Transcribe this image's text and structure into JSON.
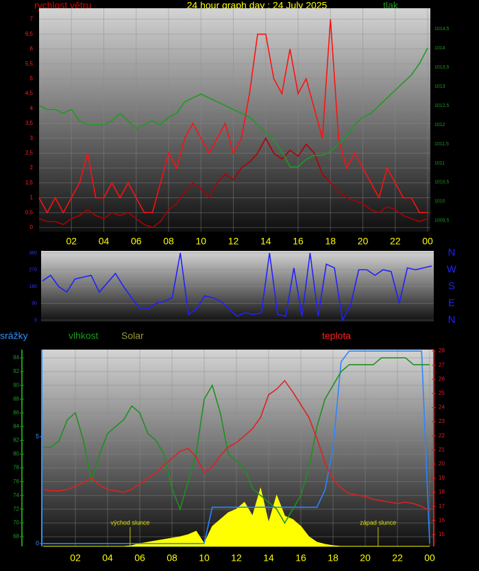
{
  "chart_data": [
    {
      "type": "line",
      "title": "24 hour graph day : 24 July 2025",
      "y_label": "rychlost větru",
      "y2_label": "tlak",
      "grid": true,
      "x": [
        0,
        0.5,
        1,
        1.5,
        2,
        2.5,
        3,
        3.5,
        4,
        4.5,
        5,
        5.5,
        6,
        6.5,
        7,
        7.5,
        8,
        8.5,
        9,
        9.5,
        10,
        10.5,
        11,
        11.5,
        12,
        12.5,
        13,
        13.5,
        14,
        14.5,
        15,
        15.5,
        16,
        16.5,
        17,
        17.5,
        18,
        18.5,
        19,
        19.5,
        20,
        20.5,
        21,
        21.5,
        22,
        22.5,
        23,
        23.5,
        24
      ],
      "xlim": [
        0,
        24
      ],
      "xticks": [
        {
          "value": 2,
          "label": "02"
        },
        {
          "value": 4,
          "label": "04"
        },
        {
          "value": 6,
          "label": "06"
        },
        {
          "value": 8,
          "label": "08"
        },
        10,
        12,
        14,
        16,
        18,
        20,
        22,
        {
          "value": 24,
          "label": "00"
        }
      ],
      "ylim": [
        -0.14,
        7.37
      ],
      "yticks": [
        0,
        {
          "value": 0.5,
          "label": "0,5"
        },
        1,
        {
          "value": 1.5,
          "label": "1,5"
        },
        2,
        {
          "value": 2.5,
          "label": "2,5"
        },
        3,
        {
          "value": 3.5,
          "label": "3,5"
        },
        4,
        {
          "value": 4.5,
          "label": "4,5"
        },
        5,
        {
          "value": 5.5,
          "label": "5,5"
        },
        6,
        {
          "value": 6.5,
          "label": "6,5"
        },
        7
      ],
      "y2lim": [
        1009.21,
        1015.04
      ],
      "y2ticks": [
        {
          "value": 1009.5,
          "label": "1009,5"
        },
        1010,
        {
          "value": 1010.5,
          "label": "1010,5"
        },
        1011,
        {
          "value": 1011.5,
          "label": "1011,5"
        },
        1012,
        {
          "value": 1012.5,
          "label": "1012,5"
        },
        1013,
        {
          "value": 1013.5,
          "label": "1013,5"
        },
        1014,
        {
          "value": 1014.5,
          "label": "1014,5"
        }
      ],
      "series": [
        {
          "color": "#ff1010",
          "values": [
            1,
            0.5,
            1,
            0.5,
            1,
            1.5,
            2.5,
            1,
            1,
            1.5,
            1,
            1.5,
            1,
            0.5,
            0.5,
            1.5,
            2.5,
            2,
            3,
            3.5,
            3,
            2.5,
            3,
            3.5,
            2.5,
            3,
            4.5,
            6.5,
            6.5,
            5,
            4.5,
            6,
            4.5,
            5,
            4,
            3,
            7,
            3,
            2,
            2.5,
            2,
            1.5,
            1,
            2,
            1.5,
            1,
            1,
            0.5,
            0.5
          ]
        },
        {
          "color": "#b00000",
          "values": [
            0.3,
            0.2,
            0.2,
            0.1,
            0.3,
            0.4,
            0.6,
            0.4,
            0.3,
            0.5,
            0.4,
            0.5,
            0.3,
            0.1,
            0,
            0.2,
            0.6,
            0.8,
            1.2,
            1.5,
            1.3,
            1,
            1.5,
            1.8,
            1.6,
            2,
            2.2,
            2.5,
            3,
            2.5,
            2.3,
            2.6,
            2.4,
            2.8,
            2.5,
            1.8,
            1.5,
            1.2,
            1,
            0.9,
            0.8,
            0.6,
            0.5,
            0.7,
            0.6,
            0.4,
            0.3,
            0.2,
            0.3
          ]
        },
        {
          "color": "#1f9a1f",
          "axis": "y2",
          "values": [
            1012.5,
            1012.4,
            1012.4,
            1012.3,
            1012.4,
            1012.1,
            1012.0,
            1012.0,
            1012.0,
            1012.1,
            1012.3,
            1012.1,
            1011.9,
            1012.0,
            1012.1,
            1012.0,
            1012.2,
            1012.3,
            1012.6,
            1012.7,
            1012.8,
            1012.7,
            1012.6,
            1012.5,
            1012.4,
            1012.3,
            1012.2,
            1012.0,
            1011.8,
            1011.6,
            1011.3,
            1010.9,
            1010.9,
            1011.1,
            1011.2,
            1011.2,
            1011.3,
            1011.5,
            1011.7,
            1012.0,
            1012.2,
            1012.3,
            1012.5,
            1012.7,
            1012.9,
            1013.1,
            1013.3,
            1013.6,
            1014.0
          ]
        }
      ]
    },
    {
      "type": "line",
      "grid": true,
      "x": [
        0,
        0.5,
        1,
        1.5,
        2,
        2.5,
        3,
        3.5,
        4,
        4.5,
        5,
        5.5,
        6,
        6.5,
        7,
        7.5,
        8,
        8.5,
        9,
        9.5,
        10,
        10.5,
        11,
        11.5,
        12,
        12.5,
        13,
        13.5,
        14,
        14.5,
        15,
        15.5,
        16,
        16.5,
        17,
        17.5,
        18,
        18.5,
        19,
        19.5,
        20,
        20.5,
        21,
        21.5,
        22,
        22.5,
        23,
        23.5,
        24
      ],
      "xlim": [
        0,
        24
      ],
      "ylim": [
        -11,
        371
      ],
      "yticks": [
        0,
        90,
        180,
        270,
        360
      ],
      "y2lim": [
        -11,
        371
      ],
      "y2ticks": [
        {
          "value": 360,
          "label": "N"
        },
        {
          "value": 270,
          "label": "W"
        },
        {
          "value": 180,
          "label": "S"
        },
        {
          "value": 90,
          "label": "E"
        },
        {
          "value": 0,
          "label": "N"
        }
      ],
      "series": [
        {
          "color": "#2020ff",
          "values": [
            210,
            240,
            180,
            150,
            220,
            230,
            240,
            150,
            200,
            250,
            180,
            120,
            60,
            60,
            90,
            100,
            120,
            360,
            30,
            60,
            130,
            120,
            100,
            60,
            20,
            40,
            30,
            40,
            360,
            30,
            20,
            280,
            20,
            360,
            20,
            300,
            280,
            0,
            80,
            270,
            270,
            240,
            270,
            260,
            90,
            280,
            270,
            280,
            290
          ]
        }
      ]
    },
    {
      "type": "line",
      "grid": true,
      "x": [
        0,
        0.5,
        1,
        1.5,
        2,
        2.5,
        3,
        3.5,
        4,
        4.5,
        5,
        5.5,
        6,
        6.5,
        7,
        7.5,
        8,
        8.5,
        9,
        9.5,
        10,
        10.5,
        11,
        11.5,
        12,
        12.5,
        13,
        13.5,
        14,
        14.5,
        15,
        15.5,
        16,
        16.5,
        17,
        17.5,
        18,
        18.5,
        19,
        19.5,
        20,
        20.5,
        21,
        21.5,
        22,
        22.5,
        23,
        23.5,
        24
      ],
      "xlim": [
        0,
        24
      ],
      "xticks": [
        {
          "value": 2,
          "label": "02"
        },
        {
          "value": 4,
          "label": "04"
        },
        {
          "value": 6,
          "label": "06"
        },
        {
          "value": 8,
          "label": "08"
        },
        10,
        12,
        14,
        16,
        18,
        20,
        22,
        {
          "value": 24,
          "label": "00"
        }
      ],
      "ylim": [
        66.6,
        95.2
      ],
      "yticks": [
        68,
        70,
        72,
        74,
        76,
        78,
        80,
        82,
        84,
        86,
        88,
        90,
        92,
        94
      ],
      "y2lim": [
        14.17,
        28.1
      ],
      "y2ticks": [
        15,
        16,
        17,
        18,
        19,
        20,
        21,
        22,
        23,
        24,
        25,
        26,
        27,
        28
      ],
      "y3lim": [
        -0.13,
        9.07
      ],
      "y3ticks": [
        0,
        5
      ],
      "annotations": [
        {
          "x": 5.4,
          "text": "východ slunce"
        },
        {
          "x": 20.8,
          "text": "západ slunce"
        }
      ],
      "series": [
        {
          "name": "srážky",
          "color": "#2a86ff",
          "axis": "y3",
          "values": [
            0,
            0,
            0,
            0,
            0,
            0,
            0,
            0,
            0,
            0,
            0,
            0,
            0,
            0,
            0,
            0,
            0,
            0,
            0,
            0,
            0,
            1.7,
            1.7,
            1.7,
            1.7,
            1.7,
            1.7,
            1.7,
            1.7,
            1.7,
            1.7,
            1.7,
            1.7,
            1.7,
            1.7,
            2.5,
            4.5,
            8.5,
            9,
            9,
            9,
            9,
            9,
            9,
            9,
            9,
            9,
            9,
            0
          ]
        },
        {
          "name": "vlhkost",
          "color": "#1f8f1f",
          "values": [
            81,
            81,
            82,
            85,
            86,
            82,
            76,
            80,
            83,
            84,
            85,
            87,
            86,
            83,
            82,
            80,
            75,
            72,
            76,
            80,
            88,
            90,
            86,
            80,
            79,
            78,
            75,
            74,
            73,
            72,
            70,
            72,
            74,
            78,
            84,
            88,
            90,
            92,
            93,
            93,
            93,
            93,
            94,
            94,
            94,
            94,
            93,
            93,
            93
          ]
        },
        {
          "name": "Solar",
          "color": "#ffff00",
          "area": true,
          "values": [
            66.6,
            66.6,
            66.6,
            66.6,
            66.6,
            66.6,
            66.6,
            66.6,
            66.6,
            66.6,
            66.6,
            66.7,
            67.0,
            67.2,
            67.4,
            67.6,
            67.8,
            68.0,
            68.3,
            68.8,
            67.0,
            69.5,
            70.5,
            71.5,
            72,
            73,
            71,
            75,
            70,
            74,
            71,
            70.5,
            69.5,
            68,
            67.2,
            66.9,
            66.7,
            66.6,
            66.6,
            66.6,
            66.6,
            66.6,
            66.6,
            66.6,
            66.6,
            66.6,
            66.6,
            66.6,
            66.6
          ]
        },
        {
          "name": "teplota",
          "color": "#e02020",
          "axis": "y2",
          "values": [
            18.2,
            18.1,
            18.1,
            18.2,
            18.4,
            18.7,
            19,
            18.5,
            18.2,
            18.1,
            18,
            18.2,
            18.6,
            19,
            19.4,
            19.9,
            20.4,
            20.9,
            21.1,
            20.5,
            19.4,
            19.8,
            20.6,
            21.2,
            21.5,
            22,
            22.5,
            23.3,
            24.9,
            25.3,
            25.9,
            25.1,
            24.2,
            23.3,
            21.8,
            20.1,
            18.9,
            18.3,
            17.9,
            17.8,
            17.7,
            17.5,
            17.4,
            17.3,
            17.2,
            17.3,
            17.2,
            17,
            16.7
          ]
        }
      ]
    }
  ]
}
